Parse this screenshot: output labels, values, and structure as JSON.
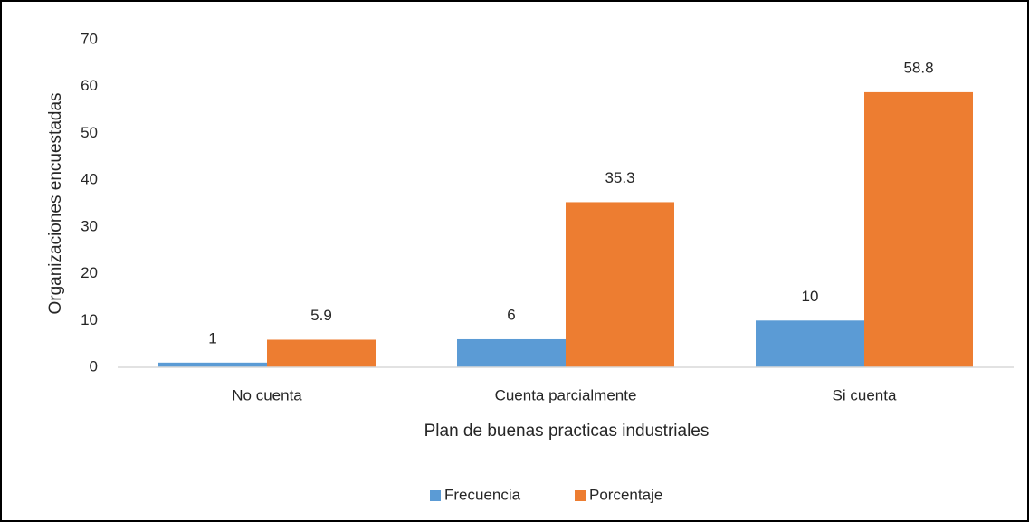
{
  "chart_data": {
    "type": "bar",
    "x_label": "Plan de buenas practicas industriales",
    "y_label": "Organizaciones encuestadas",
    "categories": [
      "No cuenta",
      "Cuenta parcialmente",
      "Si cuenta"
    ],
    "series": [
      {
        "name": "Frecuencia",
        "color": "#5b9bd5",
        "values": [
          1,
          6,
          10
        ]
      },
      {
        "name": "Porcentaje",
        "color": "#ed7d31",
        "values": [
          5.9,
          35.3,
          58.8
        ]
      }
    ],
    "ylim": [
      0,
      70
    ],
    "yticks": [
      0,
      10,
      20,
      30,
      40,
      50,
      60,
      70
    ],
    "grid": false,
    "legend": "bottom"
  }
}
